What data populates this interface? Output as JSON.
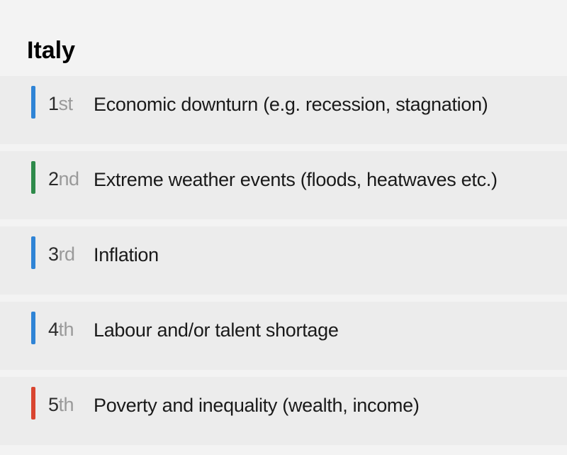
{
  "title": "Italy",
  "background_color": "#f3f3f3",
  "row_background_color": "#ececec",
  "title_fontsize": 34,
  "body_fontsize": 27,
  "accent_bar": {
    "width": 6,
    "height": 46
  },
  "ordinals": {
    "num_color": "#2b2b2b",
    "suffix_color": "#9a9a9a"
  },
  "rows": [
    {
      "rank_num": "1",
      "rank_ord": "st",
      "label": "Economic downturn (e.g. recession, stagnation)",
      "accent_color": "#2f84d6"
    },
    {
      "rank_num": "2",
      "rank_ord": "nd",
      "label": "Extreme weather events (floods, heatwaves etc.)",
      "accent_color": "#2e8a4a"
    },
    {
      "rank_num": "3",
      "rank_ord": "rd",
      "label": "Inflation",
      "accent_color": "#2f84d6"
    },
    {
      "rank_num": "4",
      "rank_ord": "th",
      "label": "Labour and/or talent shortage",
      "accent_color": "#2f84d6"
    },
    {
      "rank_num": "5",
      "rank_ord": "th",
      "label": "Poverty and inequality (wealth, income)",
      "accent_color": "#d94530"
    }
  ]
}
